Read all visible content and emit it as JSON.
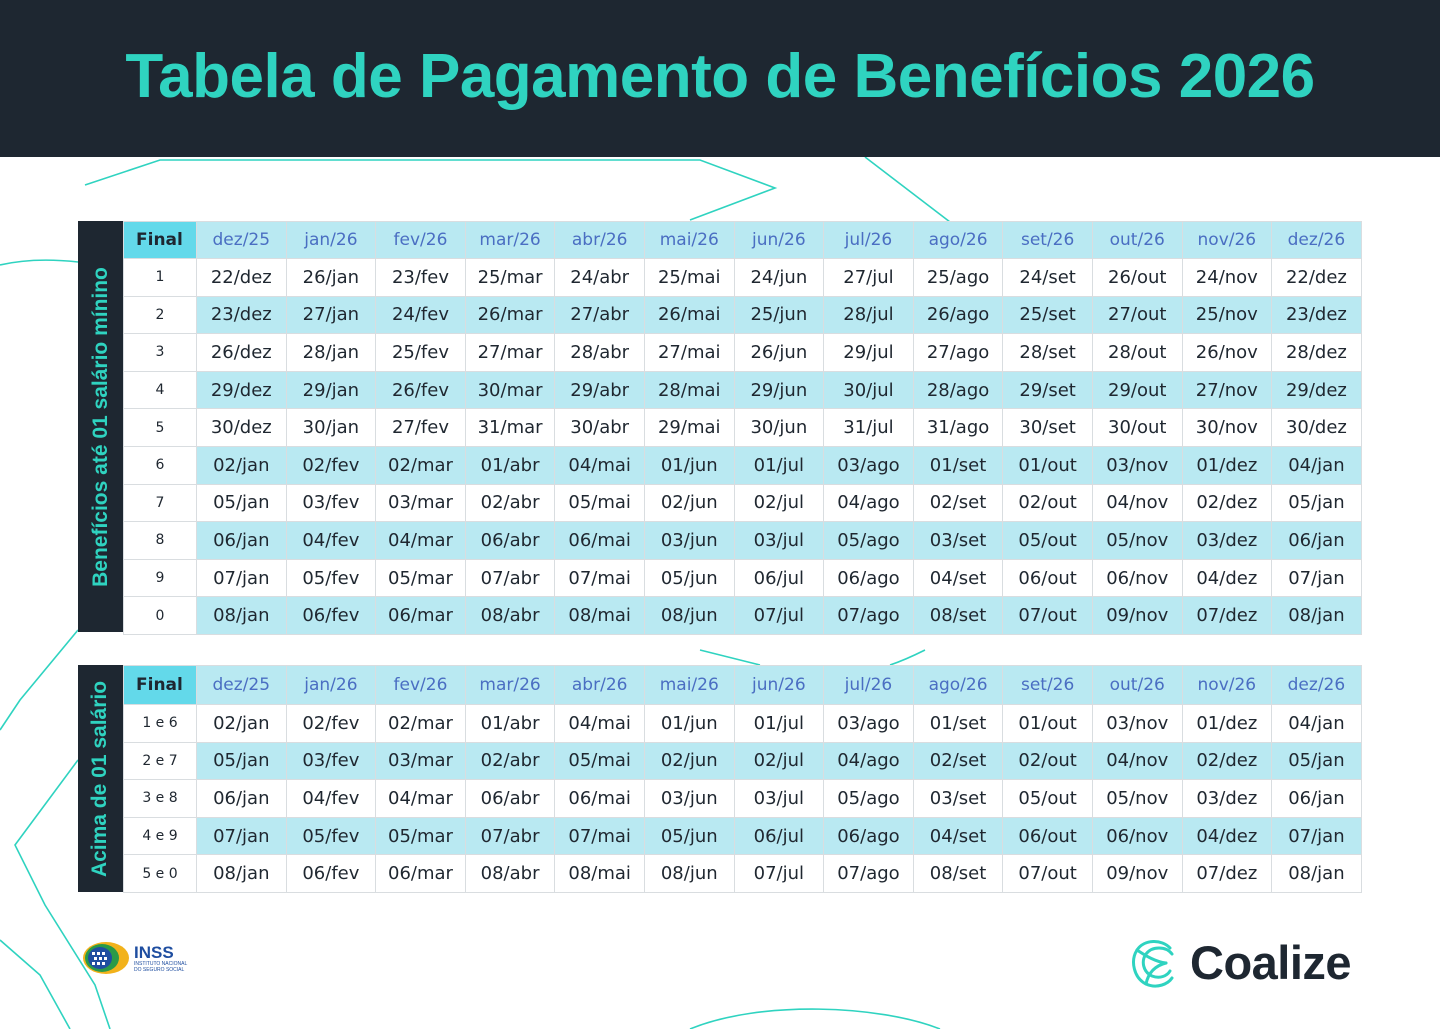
{
  "title": "Tabela de Pagamento de Benefícios 2026",
  "months": [
    "dez/25",
    "jan/26",
    "fev/26",
    "mar/26",
    "abr/26",
    "mai/26",
    "jun/26",
    "jul/26",
    "ago/26",
    "set/26",
    "out/26",
    "nov/26",
    "dez/26"
  ],
  "colors": {
    "header_bg": "#1e2731",
    "accent": "#2fd3c0",
    "row_alt": "#b9e9f2",
    "final_head": "#63d9ea",
    "month_text": "#4a6ec2"
  },
  "table1": {
    "side_label": "Benefícios até 01 salário mínino",
    "final_header": "Final",
    "rows": [
      {
        "final": "1",
        "values": [
          "22/dez",
          "26/jan",
          "23/fev",
          "25/mar",
          "24/abr",
          "25/mai",
          "24/jun",
          "27/jul",
          "25/ago",
          "24/set",
          "26/out",
          "24/nov",
          "22/dez"
        ]
      },
      {
        "final": "2",
        "values": [
          "23/dez",
          "27/jan",
          "24/fev",
          "26/mar",
          "27/abr",
          "26/mai",
          "25/jun",
          "28/jul",
          "26/ago",
          "25/set",
          "27/out",
          "25/nov",
          "23/dez"
        ]
      },
      {
        "final": "3",
        "values": [
          "26/dez",
          "28/jan",
          "25/fev",
          "27/mar",
          "28/abr",
          "27/mai",
          "26/jun",
          "29/jul",
          "27/ago",
          "28/set",
          "28/out",
          "26/nov",
          "28/dez"
        ]
      },
      {
        "final": "4",
        "values": [
          "29/dez",
          "29/jan",
          "26/fev",
          "30/mar",
          "29/abr",
          "28/mai",
          "29/jun",
          "30/jul",
          "28/ago",
          "29/set",
          "29/out",
          "27/nov",
          "29/dez"
        ]
      },
      {
        "final": "5",
        "values": [
          "30/dez",
          "30/jan",
          "27/fev",
          "31/mar",
          "30/abr",
          "29/mai",
          "30/jun",
          "31/jul",
          "31/ago",
          "30/set",
          "30/out",
          "30/nov",
          "30/dez"
        ]
      },
      {
        "final": "6",
        "values": [
          "02/jan",
          "02/fev",
          "02/mar",
          "01/abr",
          "04/mai",
          "01/jun",
          "01/jul",
          "03/ago",
          "01/set",
          "01/out",
          "03/nov",
          "01/dez",
          "04/jan"
        ]
      },
      {
        "final": "7",
        "values": [
          "05/jan",
          "03/fev",
          "03/mar",
          "02/abr",
          "05/mai",
          "02/jun",
          "02/jul",
          "04/ago",
          "02/set",
          "02/out",
          "04/nov",
          "02/dez",
          "05/jan"
        ]
      },
      {
        "final": "8",
        "values": [
          "06/jan",
          "04/fev",
          "04/mar",
          "06/abr",
          "06/mai",
          "03/jun",
          "03/jul",
          "05/ago",
          "03/set",
          "05/out",
          "05/nov",
          "03/dez",
          "06/jan"
        ]
      },
      {
        "final": "9",
        "values": [
          "07/jan",
          "05/fev",
          "05/mar",
          "07/abr",
          "07/mai",
          "05/jun",
          "06/jul",
          "06/ago",
          "04/set",
          "06/out",
          "06/nov",
          "04/dez",
          "07/jan"
        ]
      },
      {
        "final": "0",
        "values": [
          "08/jan",
          "06/fev",
          "06/mar",
          "08/abr",
          "08/mai",
          "08/jun",
          "07/jul",
          "07/ago",
          "08/set",
          "07/out",
          "09/nov",
          "07/dez",
          "08/jan"
        ]
      }
    ]
  },
  "table2": {
    "side_label": "Acima de 01 salário",
    "final_header": "Final",
    "rows": [
      {
        "final": "1 e 6",
        "values": [
          "02/jan",
          "02/fev",
          "02/mar",
          "01/abr",
          "04/mai",
          "01/jun",
          "01/jul",
          "03/ago",
          "01/set",
          "01/out",
          "03/nov",
          "01/dez",
          "04/jan"
        ]
      },
      {
        "final": "2 e 7",
        "values": [
          "05/jan",
          "03/fev",
          "03/mar",
          "02/abr",
          "05/mai",
          "02/jun",
          "02/jul",
          "04/ago",
          "02/set",
          "02/out",
          "04/nov",
          "02/dez",
          "05/jan"
        ]
      },
      {
        "final": "3 e 8",
        "values": [
          "06/jan",
          "04/fev",
          "04/mar",
          "06/abr",
          "06/mai",
          "03/jun",
          "03/jul",
          "05/ago",
          "03/set",
          "05/out",
          "05/nov",
          "03/dez",
          "06/jan"
        ]
      },
      {
        "final": "4 e 9",
        "values": [
          "07/jan",
          "05/fev",
          "05/mar",
          "07/abr",
          "07/mai",
          "05/jun",
          "06/jul",
          "06/ago",
          "04/set",
          "06/out",
          "06/nov",
          "04/dez",
          "07/jan"
        ]
      },
      {
        "final": "5 e 0",
        "values": [
          "08/jan",
          "06/fev",
          "06/mar",
          "08/abr",
          "08/mai",
          "08/jun",
          "07/jul",
          "07/ago",
          "08/set",
          "07/out",
          "09/nov",
          "07/dez",
          "08/jan"
        ]
      }
    ]
  },
  "footer": {
    "inss_name": "INSS",
    "inss_sub_1": "INSTITUTO NACIONAL",
    "inss_sub_2": "DO SEGURO SOCIAL",
    "inss_icon": "inss-logo-icon",
    "brand_name": "Coalize",
    "brand_icon": "coalize-logo-icon"
  }
}
